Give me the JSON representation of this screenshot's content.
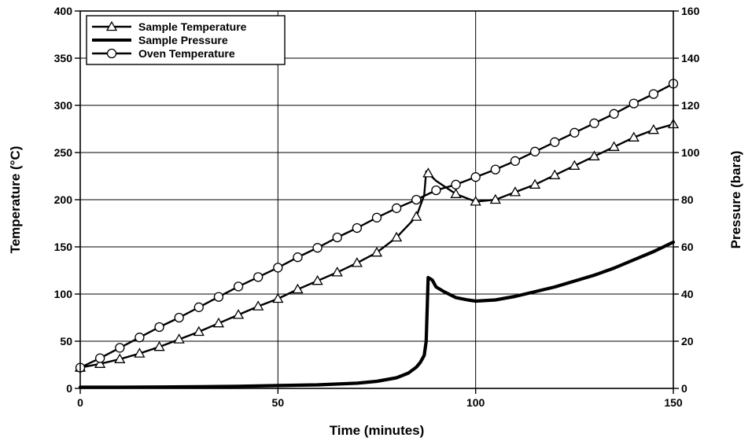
{
  "chart_data": {
    "type": "line",
    "title": "",
    "xlabel": "Time (minutes)",
    "ylabel": "Temperature (°C)",
    "y2label": "Pressure (bara)",
    "xlim": [
      0,
      150
    ],
    "ylim": [
      0,
      400
    ],
    "y2lim": [
      0,
      160
    ],
    "x_ticks": [
      0,
      50,
      100,
      150
    ],
    "y_ticks": [
      0,
      50,
      100,
      150,
      200,
      250,
      300,
      350,
      400
    ],
    "y2_ticks": [
      0,
      20,
      40,
      60,
      80,
      100,
      120,
      140,
      160
    ],
    "grid": true,
    "legend_position": "top-left",
    "series": [
      {
        "name": "Sample Temperature",
        "axis": "left",
        "marker": "triangle",
        "color": "#000000",
        "x": [
          0,
          5,
          10,
          15,
          20,
          25,
          30,
          35,
          40,
          45,
          50,
          55,
          60,
          65,
          70,
          75,
          80,
          85,
          87,
          87.5,
          88,
          90,
          95,
          100,
          105,
          110,
          115,
          120,
          125,
          130,
          135,
          140,
          145,
          150
        ],
        "y": [
          22,
          26,
          31,
          37,
          44,
          52,
          60,
          69,
          78,
          87,
          95,
          105,
          114,
          123,
          133,
          144,
          160,
          182,
          205,
          230,
          228,
          220,
          206,
          198,
          200,
          208,
          216,
          226,
          236,
          246,
          256,
          266,
          274,
          280
        ]
      },
      {
        "name": "Sample Pressure",
        "axis": "right",
        "marker": "none",
        "color": "#000000",
        "x": [
          0,
          10,
          20,
          30,
          40,
          50,
          60,
          70,
          75,
          80,
          83,
          85,
          86,
          87,
          87.5,
          88,
          89,
          90,
          92,
          95,
          98,
          100,
          105,
          110,
          115,
          120,
          125,
          130,
          135,
          140,
          145,
          150
        ],
        "y": [
          0.5,
          0.5,
          0.6,
          0.7,
          0.9,
          1.2,
          1.5,
          2.2,
          3,
          4.5,
          6.5,
          9,
          11,
          14,
          20,
          47,
          46,
          43,
          41,
          38.5,
          37.5,
          37,
          37.5,
          39,
          41,
          43,
          45.5,
          48,
          51,
          54.5,
          58,
          62
        ]
      },
      {
        "name": "Oven Temperature",
        "axis": "left",
        "marker": "circle",
        "color": "#000000",
        "x": [
          0,
          5,
          10,
          15,
          20,
          25,
          30,
          35,
          40,
          45,
          50,
          55,
          60,
          65,
          70,
          75,
          80,
          85,
          90,
          95,
          100,
          105,
          110,
          115,
          120,
          125,
          130,
          135,
          140,
          145,
          150
        ],
        "y": [
          22,
          32,
          43,
          54,
          65,
          75,
          86,
          97,
          108,
          118,
          128,
          139,
          149,
          160,
          170,
          181,
          191,
          200,
          210,
          216,
          224,
          232,
          241,
          251,
          261,
          271,
          281,
          291,
          302,
          312,
          323
        ]
      }
    ]
  }
}
